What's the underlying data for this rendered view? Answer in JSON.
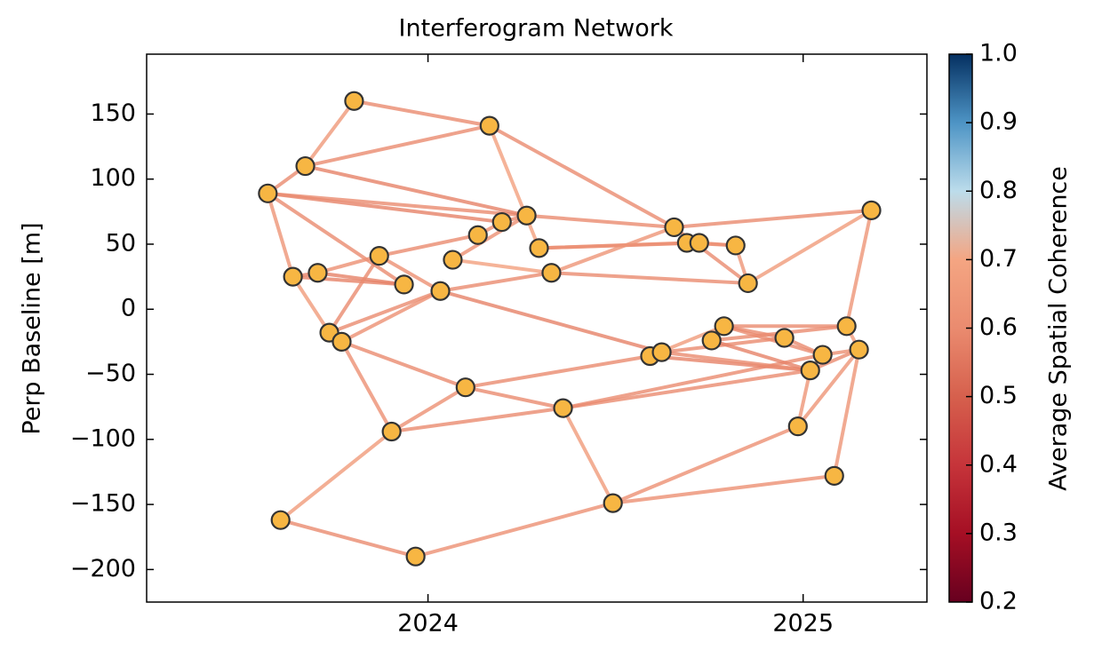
{
  "chart_data": {
    "type": "network",
    "title": "Interferogram Network",
    "ylabel": "Perp Baseline [m]",
    "colorbar_label": "Average Spatial Coherence",
    "x": [
      2023.573,
      2023.607,
      2023.64,
      2023.673,
      2023.706,
      2023.737,
      2023.77,
      2023.803,
      2023.87,
      2023.903,
      2023.936,
      2023.967,
      2024.033,
      2024.066,
      2024.1,
      2024.133,
      2024.164,
      2024.197,
      2024.263,
      2024.296,
      2024.329,
      2024.36,
      2024.493,
      2024.592,
      2024.623,
      2024.656,
      2024.69,
      2024.723,
      2024.756,
      2024.789,
      2024.82,
      2024.853,
      2024.95,
      2024.986,
      2025.019,
      2025.052,
      2025.083,
      2025.116,
      2025.149,
      2025.182
    ],
    "y": [
      89,
      -162,
      25,
      110,
      28,
      -18,
      -25,
      160,
      41,
      -94,
      19,
      -190,
      14,
      38,
      -60,
      57,
      141,
      67,
      72,
      47,
      28,
      -76,
      -149,
      -36,
      -33,
      63,
      51,
      51,
      -24,
      -13,
      49,
      20,
      -22,
      -90,
      -47,
      -35,
      -128,
      -13,
      -31,
      76
    ],
    "edges": [
      {
        "source": 0,
        "target": 3,
        "coherence": 0.6
      },
      {
        "source": 3,
        "target": 7,
        "coherence": 0.65
      },
      {
        "source": 0,
        "target": 2,
        "coherence": 0.64
      },
      {
        "source": 0,
        "target": 10,
        "coherence": 0.6
      },
      {
        "source": 0,
        "target": 17,
        "coherence": 0.58
      },
      {
        "source": 0,
        "target": 18,
        "coherence": 0.6
      },
      {
        "source": 3,
        "target": 16,
        "coherence": 0.6
      },
      {
        "source": 3,
        "target": 18,
        "coherence": 0.58
      },
      {
        "source": 7,
        "target": 16,
        "coherence": 0.6
      },
      {
        "source": 16,
        "target": 19,
        "coherence": 0.68
      },
      {
        "source": 16,
        "target": 25,
        "coherence": 0.6
      },
      {
        "source": 2,
        "target": 4,
        "coherence": 0.58
      },
      {
        "source": 2,
        "target": 5,
        "coherence": 0.66
      },
      {
        "source": 2,
        "target": 10,
        "coherence": 0.58
      },
      {
        "source": 4,
        "target": 8,
        "coherence": 0.62
      },
      {
        "source": 4,
        "target": 10,
        "coherence": 0.58
      },
      {
        "source": 8,
        "target": 15,
        "coherence": 0.6
      },
      {
        "source": 8,
        "target": 12,
        "coherence": 0.62
      },
      {
        "source": 5,
        "target": 12,
        "coherence": 0.6
      },
      {
        "source": 5,
        "target": 8,
        "coherence": 0.6
      },
      {
        "source": 6,
        "target": 12,
        "coherence": 0.62
      },
      {
        "source": 6,
        "target": 9,
        "coherence": 0.62
      },
      {
        "source": 6,
        "target": 14,
        "coherence": 0.6
      },
      {
        "source": 9,
        "target": 14,
        "coherence": 0.62
      },
      {
        "source": 9,
        "target": 21,
        "coherence": 0.6
      },
      {
        "source": 1,
        "target": 9,
        "coherence": 0.66
      },
      {
        "source": 1,
        "target": 11,
        "coherence": 0.6
      },
      {
        "source": 11,
        "target": 22,
        "coherence": 0.62
      },
      {
        "source": 14,
        "target": 21,
        "coherence": 0.6
      },
      {
        "source": 14,
        "target": 23,
        "coherence": 0.6
      },
      {
        "source": 12,
        "target": 20,
        "coherence": 0.6
      },
      {
        "source": 12,
        "target": 24,
        "coherence": 0.58
      },
      {
        "source": 13,
        "target": 20,
        "coherence": 0.68
      },
      {
        "source": 13,
        "target": 18,
        "coherence": 0.62
      },
      {
        "source": 15,
        "target": 17,
        "coherence": 0.62
      },
      {
        "source": 17,
        "target": 18,
        "coherence": 0.6
      },
      {
        "source": 18,
        "target": 25,
        "coherence": 0.6
      },
      {
        "source": 19,
        "target": 26,
        "coherence": 0.66
      },
      {
        "source": 19,
        "target": 27,
        "coherence": 0.6
      },
      {
        "source": 20,
        "target": 31,
        "coherence": 0.6
      },
      {
        "source": 20,
        "target": 25,
        "coherence": 0.64
      },
      {
        "source": 21,
        "target": 22,
        "coherence": 0.66
      },
      {
        "source": 21,
        "target": 34,
        "coherence": 0.6
      },
      {
        "source": 21,
        "target": 35,
        "coherence": 0.6
      },
      {
        "source": 22,
        "target": 33,
        "coherence": 0.62
      },
      {
        "source": 22,
        "target": 36,
        "coherence": 0.62
      },
      {
        "source": 23,
        "target": 24,
        "coherence": 0.6
      },
      {
        "source": 23,
        "target": 34,
        "coherence": 0.58
      },
      {
        "source": 23,
        "target": 29,
        "coherence": 0.66
      },
      {
        "source": 24,
        "target": 32,
        "coherence": 0.6
      },
      {
        "source": 24,
        "target": 34,
        "coherence": 0.6
      },
      {
        "source": 25,
        "target": 39,
        "coherence": 0.6
      },
      {
        "source": 25,
        "target": 31,
        "coherence": 0.6
      },
      {
        "source": 26,
        "target": 30,
        "coherence": 0.6
      },
      {
        "source": 27,
        "target": 30,
        "coherence": 0.62
      },
      {
        "source": 30,
        "target": 31,
        "coherence": 0.64
      },
      {
        "source": 31,
        "target": 39,
        "coherence": 0.66
      },
      {
        "source": 28,
        "target": 29,
        "coherence": 0.6
      },
      {
        "source": 28,
        "target": 37,
        "coherence": 0.6
      },
      {
        "source": 28,
        "target": 34,
        "coherence": 0.58
      },
      {
        "source": 29,
        "target": 37,
        "coherence": 0.6
      },
      {
        "source": 29,
        "target": 35,
        "coherence": 0.6
      },
      {
        "source": 29,
        "target": 32,
        "coherence": 0.6
      },
      {
        "source": 32,
        "target": 35,
        "coherence": 0.6
      },
      {
        "source": 33,
        "target": 34,
        "coherence": 0.64
      },
      {
        "source": 33,
        "target": 38,
        "coherence": 0.64
      },
      {
        "source": 34,
        "target": 35,
        "coherence": 0.64
      },
      {
        "source": 34,
        "target": 38,
        "coherence": 0.6
      },
      {
        "source": 36,
        "target": 38,
        "coherence": 0.64
      },
      {
        "source": 37,
        "target": 38,
        "coherence": 0.66
      },
      {
        "source": 37,
        "target": 39,
        "coherence": 0.64
      },
      {
        "source": 35,
        "target": 38,
        "coherence": 0.62
      }
    ],
    "node_color": "#f7b643",
    "node_edge_color": "#333333",
    "xlim": [
      2023.25,
      2025.33
    ],
    "xticks": [
      2024,
      2025
    ],
    "ylim": [
      -225,
      196
    ],
    "yticks": [
      {
        "value": -200,
        "label": "−200"
      },
      {
        "value": -150,
        "label": "−150"
      },
      {
        "value": -100,
        "label": "−100"
      },
      {
        "value": -50,
        "label": "−50"
      },
      0,
      50,
      100,
      150
    ],
    "clim": [
      0.2,
      1.0
    ],
    "cticks": [
      0.2,
      0.3,
      0.4,
      0.5,
      0.6,
      0.7,
      0.8,
      0.9,
      {
        "value": 1,
        "label": "1.0"
      }
    ],
    "colormap": [
      "#67001f",
      "#a50f24",
      "#c6343a",
      "#d6604d",
      "#ea8b6f",
      "#f4a582",
      "#bcdceb",
      "#4d94c5",
      "#053061"
    ]
  }
}
